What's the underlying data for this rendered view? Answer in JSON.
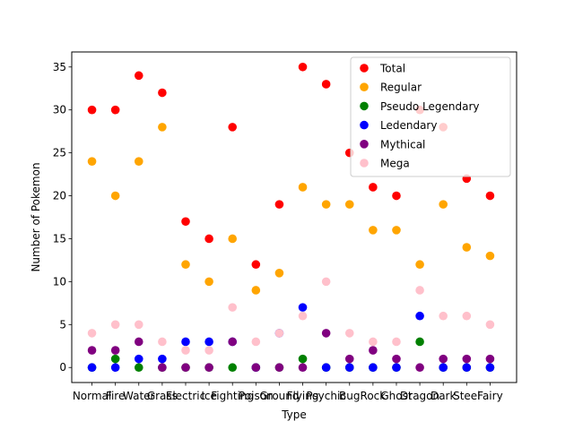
{
  "chart_data": {
    "type": "scatter",
    "xlabel": "Type",
    "ylabel": "Number of Pokemon",
    "categories": [
      "Normal",
      "Fire",
      "Water",
      "Grass",
      "Electric",
      "Ice",
      "Fighting",
      "Poison",
      "Ground",
      "Flying",
      "Psychic",
      "Bug",
      "Rock",
      "Ghost",
      "Dragon",
      "Dark",
      "Steel",
      "Fairy"
    ],
    "ylim": [
      -1.75,
      36.75
    ],
    "yticks": [
      0,
      5,
      10,
      15,
      20,
      25,
      30,
      35
    ],
    "grid": false,
    "legend_position": "top-right",
    "series": [
      {
        "name": "Total",
        "color": "#ff0000",
        "values": [
          30,
          30,
          34,
          32,
          17,
          15,
          28,
          12,
          19,
          35,
          33,
          25,
          21,
          20,
          30,
          28,
          22,
          20
        ]
      },
      {
        "name": "Regular",
        "color": "#ffa500",
        "values": [
          24,
          20,
          24,
          28,
          12,
          10,
          15,
          9,
          11,
          21,
          19,
          19,
          16,
          16,
          12,
          19,
          14,
          13
        ]
      },
      {
        "name": "Pseudo Legendary",
        "color": "#008000",
        "values": [
          0,
          1,
          0,
          0,
          0,
          0,
          0,
          0,
          0,
          1,
          0,
          0,
          0,
          0,
          3,
          0,
          0,
          0
        ]
      },
      {
        "name": "Ledendary",
        "color": "#0000ff",
        "values": [
          0,
          0,
          1,
          1,
          3,
          3,
          3,
          0,
          4,
          7,
          0,
          0,
          0,
          0,
          6,
          0,
          0,
          0
        ]
      },
      {
        "name": "Mythical",
        "color": "#800080",
        "values": [
          2,
          2,
          3,
          0,
          0,
          0,
          3,
          0,
          0,
          0,
          4,
          1,
          2,
          1,
          0,
          1,
          1,
          1
        ]
      },
      {
        "name": "Mega",
        "color": "#ffc0cb",
        "values": [
          4,
          5,
          5,
          3,
          2,
          2,
          7,
          3,
          4,
          6,
          10,
          4,
          3,
          3,
          9,
          6,
          6,
          5
        ]
      }
    ]
  }
}
